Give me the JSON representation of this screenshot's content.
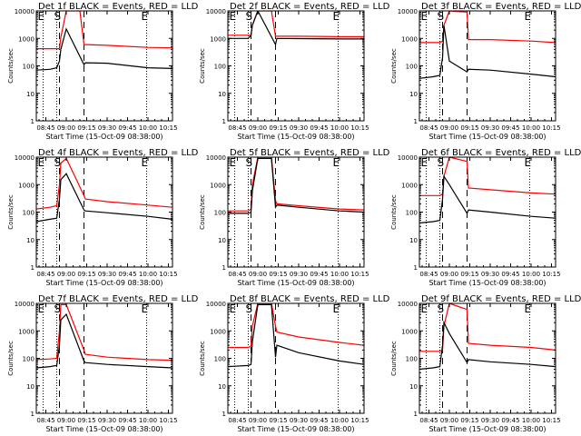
{
  "figure": {
    "xlabel": "Start Time (15-Oct-09 08:38:00)",
    "ylabel": "Counts/sec",
    "x_ticks": [
      "08:45",
      "09:00",
      "09:15",
      "09:30",
      "09:45",
      "10:00",
      "10:15"
    ],
    "y_ticks": [
      "1",
      "10",
      "100",
      "1000",
      "10000"
    ],
    "colors": {
      "events": "#000000",
      "lld": "#ff0000",
      "frame": "#000000",
      "background": "#ffffff"
    }
  },
  "chart_data": [
    {
      "type": "line",
      "title": "Det 1f BLACK = Events, RED = LLD",
      "xlim": [
        "08:38",
        "10:18"
      ],
      "ylim": [
        1,
        10000
      ],
      "yscale": "log",
      "grid": false,
      "markers": [
        {
          "time": "08:43",
          "label": "E",
          "style": "dotted"
        },
        {
          "time": "08:53",
          "label": "",
          "style": "dotted"
        },
        {
          "time": "08:55",
          "label": "S",
          "style": "dashed"
        },
        {
          "time": "09:13",
          "label": "",
          "style": "dashed"
        },
        {
          "time": "09:59",
          "label": "E",
          "style": "dotted"
        }
      ],
      "series": [
        {
          "name": "Events",
          "color": "#000000",
          "x": [
            "08:38",
            "08:48",
            "08:53",
            "08:55",
            "08:56",
            "09:00",
            "09:13",
            "09:14",
            "09:30",
            "10:00",
            "10:18"
          ],
          "y": [
            70,
            75,
            85,
            150,
            400,
            2200,
            110,
            130,
            125,
            85,
            80
          ]
        },
        {
          "name": "LLD",
          "color": "#ff0000",
          "x": [
            "08:38",
            "08:53",
            "08:55",
            "08:56",
            "09:00",
            "09:10",
            "09:13",
            "09:30",
            "10:00",
            "10:18"
          ],
          "y": [
            420,
            420,
            420,
            1100,
            12000,
            12000,
            600,
            560,
            470,
            450
          ]
        }
      ]
    },
    {
      "type": "line",
      "title": "Det 2f BLACK = Events, RED = LLD",
      "xlim": [
        "08:38",
        "10:18"
      ],
      "ylim": [
        1,
        10000
      ],
      "yscale": "log",
      "grid": false,
      "markers": [
        {
          "time": "08:43",
          "label": "E",
          "style": "dotted"
        },
        {
          "time": "08:53",
          "label": "",
          "style": "dotted"
        },
        {
          "time": "08:55",
          "label": "S",
          "style": "dashed"
        },
        {
          "time": "09:13",
          "label": "",
          "style": "dashed"
        },
        {
          "time": "09:59",
          "label": "E",
          "style": "dotted"
        }
      ],
      "series": [
        {
          "name": "Events",
          "color": "#000000",
          "x": [
            "08:38",
            "08:53",
            "08:55",
            "08:56",
            "09:00",
            "09:13",
            "09:14",
            "09:30",
            "10:00",
            "10:18"
          ],
          "y": [
            1000,
            1000,
            1300,
            3000,
            12000,
            600,
            1000,
            980,
            950,
            950
          ]
        },
        {
          "name": "LLD",
          "color": "#ff0000",
          "x": [
            "08:38",
            "08:53",
            "08:55",
            "08:56",
            "09:00",
            "09:10",
            "09:13",
            "09:30",
            "10:00",
            "10:18"
          ],
          "y": [
            1300,
            1300,
            1300,
            3000,
            12000,
            12000,
            1200,
            1200,
            1150,
            1150
          ]
        }
      ]
    },
    {
      "type": "line",
      "title": "Det 3f BLACK = Events, RED = LLD",
      "xlim": [
        "08:38",
        "10:18"
      ],
      "ylim": [
        1,
        10000
      ],
      "yscale": "log",
      "grid": false,
      "markers": [
        {
          "time": "08:43",
          "label": "E",
          "style": "dotted"
        },
        {
          "time": "08:53",
          "label": "",
          "style": "dotted"
        },
        {
          "time": "08:55",
          "label": "S",
          "style": "dashed"
        },
        {
          "time": "09:13",
          "label": "",
          "style": "dashed"
        },
        {
          "time": "09:59",
          "label": "E",
          "style": "dotted"
        }
      ],
      "series": [
        {
          "name": "Events",
          "color": "#000000",
          "x": [
            "08:38",
            "08:48",
            "08:53",
            "08:55",
            "08:56",
            "09:00",
            "09:13",
            "09:14",
            "09:30",
            "10:00",
            "10:18"
          ],
          "y": [
            35,
            40,
            45,
            200,
            3000,
            150,
            60,
            75,
            70,
            50,
            40
          ]
        },
        {
          "name": "LLD",
          "color": "#ff0000",
          "x": [
            "08:38",
            "08:53",
            "08:55",
            "08:56",
            "09:00",
            "09:13",
            "09:14",
            "09:30",
            "10:00",
            "10:18"
          ],
          "y": [
            700,
            700,
            800,
            3000,
            12000,
            9000,
            900,
            900,
            800,
            700
          ]
        }
      ]
    },
    {
      "type": "line",
      "title": "Det 4f BLACK = Events, RED = LLD",
      "xlim": [
        "08:38",
        "10:18"
      ],
      "ylim": [
        1,
        10000
      ],
      "yscale": "log",
      "grid": false,
      "markers": [
        {
          "time": "08:43",
          "label": "E",
          "style": "dotted"
        },
        {
          "time": "08:53",
          "label": "",
          "style": "dotted"
        },
        {
          "time": "08:55",
          "label": "S",
          "style": "dashed"
        },
        {
          "time": "09:13",
          "label": "",
          "style": "dashed"
        },
        {
          "time": "09:59",
          "label": "E",
          "style": "dotted"
        }
      ],
      "series": [
        {
          "name": "Events",
          "color": "#000000",
          "x": [
            "08:38",
            "08:48",
            "08:53",
            "08:55",
            "08:56",
            "09:00",
            "09:13",
            "09:14",
            "09:30",
            "10:00",
            "10:18"
          ],
          "y": [
            45,
            55,
            60,
            300,
            1500,
            2500,
            120,
            110,
            95,
            70,
            55
          ]
        },
        {
          "name": "LLD",
          "color": "#ff0000",
          "x": [
            "08:38",
            "08:48",
            "08:53",
            "08:55",
            "08:56",
            "09:00",
            "09:13",
            "09:14",
            "09:30",
            "10:00",
            "10:18"
          ],
          "y": [
            130,
            150,
            170,
            1000,
            6000,
            9000,
            400,
            300,
            240,
            180,
            150
          ]
        }
      ]
    },
    {
      "type": "line",
      "title": "Det 5f BLACK = Events, RED = LLD",
      "xlim": [
        "08:38",
        "10:18"
      ],
      "ylim": [
        1,
        10000
      ],
      "yscale": "log",
      "grid": false,
      "markers": [
        {
          "time": "08:43",
          "label": "E",
          "style": "dotted"
        },
        {
          "time": "08:53",
          "label": "",
          "style": "dotted"
        },
        {
          "time": "08:55",
          "label": "S",
          "style": "dashed"
        },
        {
          "time": "09:13",
          "label": "",
          "style": "dashed"
        },
        {
          "time": "09:59",
          "label": "E",
          "style": "dotted"
        }
      ],
      "series": [
        {
          "name": "Events",
          "color": "#000000",
          "x": [
            "08:38",
            "08:53",
            "08:55",
            "08:56",
            "09:00",
            "09:10",
            "09:13",
            "09:14",
            "09:30",
            "10:00",
            "10:18"
          ],
          "y": [
            90,
            90,
            100,
            600,
            9000,
            9000,
            150,
            180,
            150,
            110,
            100
          ]
        },
        {
          "name": "LLD",
          "color": "#ff0000",
          "x": [
            "08:38",
            "08:53",
            "08:55",
            "08:56",
            "09:00",
            "09:10",
            "09:13",
            "09:14",
            "09:30",
            "10:00",
            "10:18"
          ],
          "y": [
            110,
            110,
            130,
            1000,
            12000,
            12000,
            260,
            200,
            170,
            130,
            120
          ]
        }
      ]
    },
    {
      "type": "line",
      "title": "Det 6f BLACK = Events, RED = LLD",
      "xlim": [
        "08:38",
        "10:18"
      ],
      "ylim": [
        1,
        10000
      ],
      "yscale": "log",
      "grid": false,
      "markers": [
        {
          "time": "08:43",
          "label": "E",
          "style": "dotted"
        },
        {
          "time": "08:53",
          "label": "",
          "style": "dotted"
        },
        {
          "time": "08:55",
          "label": "S",
          "style": "dashed"
        },
        {
          "time": "09:13",
          "label": "",
          "style": "dashed"
        },
        {
          "time": "09:59",
          "label": "E",
          "style": "dotted"
        }
      ],
      "series": [
        {
          "name": "Events",
          "color": "#000000",
          "x": [
            "08:38",
            "08:48",
            "08:53",
            "08:55",
            "08:56",
            "09:00",
            "09:13",
            "09:14",
            "09:30",
            "10:00",
            "10:18"
          ],
          "y": [
            40,
            45,
            50,
            300,
            2000,
            1000,
            90,
            120,
            100,
            70,
            60
          ]
        },
        {
          "name": "LLD",
          "color": "#ff0000",
          "x": [
            "08:38",
            "08:53",
            "08:55",
            "08:56",
            "09:00",
            "09:13",
            "09:14",
            "09:30",
            "10:00",
            "10:18"
          ],
          "y": [
            400,
            400,
            450,
            2000,
            12000,
            7000,
            750,
            650,
            500,
            450
          ]
        }
      ]
    },
    {
      "type": "line",
      "title": "Det 7f BLACK = Events, RED = LLD",
      "xlim": [
        "08:38",
        "10:18"
      ],
      "ylim": [
        1,
        10000
      ],
      "yscale": "log",
      "grid": false,
      "markers": [
        {
          "time": "08:43",
          "label": "E",
          "style": "dotted"
        },
        {
          "time": "08:53",
          "label": "",
          "style": "dotted"
        },
        {
          "time": "08:55",
          "label": "S",
          "style": "dashed"
        },
        {
          "time": "09:13",
          "label": "",
          "style": "dashed"
        },
        {
          "time": "09:59",
          "label": "E",
          "style": "dotted"
        }
      ],
      "series": [
        {
          "name": "Events",
          "color": "#000000",
          "x": [
            "08:38",
            "08:48",
            "08:53",
            "08:55",
            "08:56",
            "09:00",
            "09:13",
            "09:14",
            "09:30",
            "10:00",
            "10:18"
          ],
          "y": [
            45,
            50,
            55,
            300,
            2500,
            4000,
            80,
            70,
            60,
            50,
            45
          ]
        },
        {
          "name": "LLD",
          "color": "#ff0000",
          "x": [
            "08:38",
            "08:48",
            "08:53",
            "08:55",
            "08:56",
            "09:00",
            "09:13",
            "09:14",
            "09:30",
            "10:00",
            "10:18"
          ],
          "y": [
            90,
            95,
            100,
            1000,
            9000,
            9000,
            200,
            140,
            110,
            90,
            85
          ]
        }
      ]
    },
    {
      "type": "line",
      "title": "Det 8f BLACK = Events, RED = LLD",
      "xlim": [
        "08:38",
        "10:18"
      ],
      "ylim": [
        1,
        10000
      ],
      "yscale": "log",
      "grid": false,
      "markers": [
        {
          "time": "08:43",
          "label": "E",
          "style": "dotted"
        },
        {
          "time": "08:53",
          "label": "",
          "style": "dotted"
        },
        {
          "time": "08:55",
          "label": "S",
          "style": "dashed"
        },
        {
          "time": "09:13",
          "label": "",
          "style": "dashed"
        },
        {
          "time": "09:59",
          "label": "E",
          "style": "dotted"
        }
      ],
      "series": [
        {
          "name": "Events",
          "color": "#000000",
          "x": [
            "08:38",
            "08:53",
            "08:55",
            "08:56",
            "09:00",
            "09:10",
            "09:13",
            "09:14",
            "09:30",
            "10:00",
            "10:18"
          ],
          "y": [
            50,
            55,
            60,
            400,
            9000,
            9000,
            110,
            300,
            160,
            80,
            60
          ]
        },
        {
          "name": "LLD",
          "color": "#ff0000",
          "x": [
            "08:38",
            "08:53",
            "08:55",
            "08:56",
            "09:00",
            "09:10",
            "09:13",
            "09:14",
            "09:30",
            "10:00",
            "10:18"
          ],
          "y": [
            250,
            250,
            280,
            1500,
            12000,
            12000,
            1500,
            900,
            600,
            380,
            300
          ]
        }
      ]
    },
    {
      "type": "line",
      "title": "Det 9f BLACK = Events, RED = LLD",
      "xlim": [
        "08:38",
        "10:18"
      ],
      "ylim": [
        1,
        10000
      ],
      "yscale": "log",
      "grid": false,
      "markers": [
        {
          "time": "08:43",
          "label": "E",
          "style": "dotted"
        },
        {
          "time": "08:53",
          "label": "",
          "style": "dotted"
        },
        {
          "time": "08:55",
          "label": "S",
          "style": "dashed"
        },
        {
          "time": "09:13",
          "label": "",
          "style": "dashed"
        },
        {
          "time": "09:59",
          "label": "E",
          "style": "dotted"
        }
      ],
      "series": [
        {
          "name": "Events",
          "color": "#000000",
          "x": [
            "08:38",
            "08:48",
            "08:53",
            "08:55",
            "08:56",
            "09:00",
            "09:13",
            "09:14",
            "09:30",
            "10:00",
            "10:18"
          ],
          "y": [
            40,
            45,
            50,
            300,
            2000,
            800,
            70,
            90,
            75,
            60,
            50
          ]
        },
        {
          "name": "LLD",
          "color": "#ff0000",
          "x": [
            "08:38",
            "08:53",
            "08:55",
            "08:56",
            "09:00",
            "09:13",
            "09:14",
            "09:30",
            "10:00",
            "10:18"
          ],
          "y": [
            180,
            180,
            200,
            1500,
            12000,
            6000,
            350,
            300,
            250,
            200
          ]
        }
      ]
    }
  ]
}
